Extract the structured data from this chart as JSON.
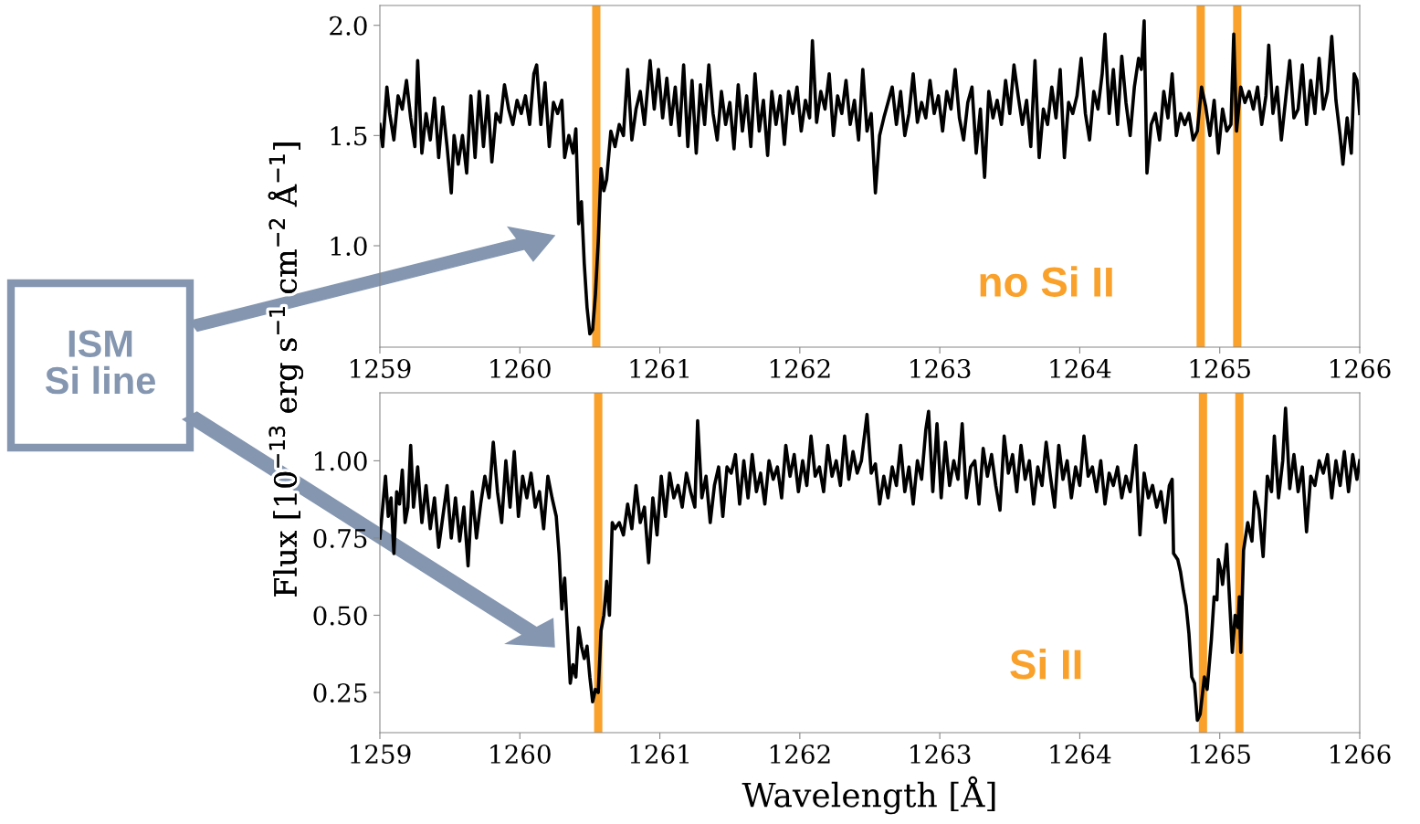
{
  "chart_data": [
    {
      "type": "line",
      "ylabel": "Flux [10$^{−13}$ erg s$^{−1}$ cm$^{−2}$ Å$^{−1}$]",
      "xlim": [
        1259,
        1266
      ],
      "xticks": [
        1259,
        1260,
        1261,
        1262,
        1263,
        1264,
        1265,
        1266
      ],
      "ylim": [
        0.54,
        2.09
      ],
      "yticks": [
        {
          "value": 1,
          "label": "1.0"
        },
        {
          "value": 1.5,
          "label": "1.5"
        },
        {
          "value": 2,
          "label": "2.0"
        }
      ],
      "ref_lines": [
        {
          "axis": "x",
          "value": 1260.546,
          "color": "#f9a12a"
        },
        {
          "axis": "x",
          "value": 1264.864,
          "color": "#f9a12a"
        },
        {
          "axis": "x",
          "value": 1265.125,
          "color": "#f9a12a"
        }
      ],
      "annotations": [
        "no Si II",
        "ISM\nSi line"
      ],
      "series": [
        {
          "color": "#000000",
          "x": [
            1259.0,
            1259.02,
            1259.05,
            1259.07,
            1259.1,
            1259.13,
            1259.16,
            1259.19,
            1259.22,
            1259.25,
            1259.27,
            1259.3,
            1259.33,
            1259.36,
            1259.39,
            1259.42,
            1259.45,
            1259.48,
            1259.51,
            1259.53,
            1259.56,
            1259.59,
            1259.62,
            1259.65,
            1259.68,
            1259.71,
            1259.74,
            1259.77,
            1259.8,
            1259.83,
            1259.86,
            1259.89,
            1259.92,
            1259.95,
            1259.98,
            1260.01,
            1260.04,
            1260.07,
            1260.1,
            1260.12,
            1260.15,
            1260.18,
            1260.21,
            1260.24,
            1260.27,
            1260.3,
            1260.32,
            1260.35,
            1260.38,
            1260.4,
            1260.42,
            1260.44,
            1260.46,
            1260.48,
            1260.5,
            1260.52,
            1260.54,
            1260.56,
            1260.58,
            1260.6,
            1260.62,
            1260.65,
            1260.68,
            1260.71,
            1260.74,
            1260.77,
            1260.8,
            1260.83,
            1260.86,
            1260.89,
            1260.93,
            1260.96,
            1260.99,
            1261.02,
            1261.05,
            1261.08,
            1261.11,
            1261.14,
            1261.17,
            1261.2,
            1261.23,
            1261.26,
            1261.29,
            1261.32,
            1261.35,
            1261.38,
            1261.41,
            1261.44,
            1261.47,
            1261.5,
            1261.53,
            1261.56,
            1261.59,
            1261.62,
            1261.65,
            1261.68,
            1261.71,
            1261.74,
            1261.77,
            1261.8,
            1261.83,
            1261.86,
            1261.89,
            1261.92,
            1261.95,
            1261.98,
            1262.01,
            1262.04,
            1262.07,
            1262.09,
            1262.12,
            1262.15,
            1262.18,
            1262.21,
            1262.24,
            1262.27,
            1262.3,
            1262.33,
            1262.36,
            1262.39,
            1262.42,
            1262.45,
            1262.48,
            1262.51,
            1262.54,
            1262.57,
            1262.6,
            1262.63,
            1262.66,
            1262.69,
            1262.72,
            1262.75,
            1262.78,
            1262.81,
            1262.84,
            1262.87,
            1262.9,
            1262.93,
            1262.96,
            1262.99,
            1263.02,
            1263.05,
            1263.08,
            1263.11,
            1263.14,
            1263.17,
            1263.2,
            1263.23,
            1263.26,
            1263.29,
            1263.32,
            1263.35,
            1263.38,
            1263.41,
            1263.44,
            1263.47,
            1263.5,
            1263.53,
            1263.56,
            1263.59,
            1263.62,
            1263.65,
            1263.68,
            1263.71,
            1263.74,
            1263.77,
            1263.8,
            1263.83,
            1263.86,
            1263.89,
            1263.92,
            1263.95,
            1263.98,
            1264.01,
            1264.04,
            1264.07,
            1264.1,
            1264.13,
            1264.16,
            1264.18,
            1264.21,
            1264.24,
            1264.27,
            1264.3,
            1264.33,
            1264.36,
            1264.39,
            1264.42,
            1264.44,
            1264.46,
            1264.48,
            1264.51,
            1264.54,
            1264.57,
            1264.6,
            1264.63,
            1264.66,
            1264.69,
            1264.72,
            1264.75,
            1264.78,
            1264.81,
            1264.84,
            1264.87,
            1264.9,
            1264.93,
            1264.96,
            1264.99,
            1265.02,
            1265.05,
            1265.08,
            1265.1,
            1265.12,
            1265.15,
            1265.18,
            1265.21,
            1265.24,
            1265.27,
            1265.3,
            1265.33,
            1265.35,
            1265.38,
            1265.41,
            1265.44,
            1265.47,
            1265.5,
            1265.53,
            1265.56,
            1265.59,
            1265.62,
            1265.65,
            1265.68,
            1265.71,
            1265.74,
            1265.77,
            1265.8,
            1265.83,
            1265.86,
            1265.88,
            1265.91,
            1265.94,
            1265.96,
            1265.98,
            1266.0
          ],
          "values": [
            1.55,
            1.45,
            1.72,
            1.6,
            1.48,
            1.68,
            1.62,
            1.75,
            1.58,
            1.45,
            1.84,
            1.42,
            1.6,
            1.48,
            1.67,
            1.4,
            1.63,
            1.45,
            1.24,
            1.5,
            1.37,
            1.5,
            1.33,
            1.68,
            1.4,
            1.7,
            1.45,
            1.68,
            1.38,
            1.6,
            1.56,
            1.73,
            1.62,
            1.55,
            1.66,
            1.6,
            1.68,
            1.55,
            1.78,
            1.82,
            1.55,
            1.74,
            1.45,
            1.65,
            1.6,
            1.66,
            1.4,
            1.5,
            1.42,
            1.53,
            1.1,
            1.2,
            0.92,
            0.72,
            0.6,
            0.62,
            0.78,
            1.02,
            1.35,
            1.25,
            1.3,
            1.52,
            1.45,
            1.55,
            1.5,
            1.8,
            1.48,
            1.62,
            1.7,
            1.55,
            1.84,
            1.62,
            1.8,
            1.58,
            1.76,
            1.55,
            1.72,
            1.5,
            1.82,
            1.45,
            1.75,
            1.42,
            1.73,
            1.55,
            1.82,
            1.6,
            1.48,
            1.7,
            1.55,
            1.65,
            1.44,
            1.73,
            1.52,
            1.68,
            1.45,
            1.78,
            1.52,
            1.66,
            1.41,
            1.7,
            1.55,
            1.68,
            1.46,
            1.7,
            1.6,
            1.72,
            1.52,
            1.66,
            1.58,
            1.93,
            1.56,
            1.7,
            1.62,
            1.78,
            1.5,
            1.68,
            1.6,
            1.75,
            1.55,
            1.66,
            1.48,
            1.8,
            1.52,
            1.6,
            1.24,
            1.5,
            1.58,
            1.65,
            1.72,
            1.55,
            1.7,
            1.5,
            1.6,
            1.78,
            1.56,
            1.65,
            1.58,
            1.75,
            1.6,
            1.68,
            1.52,
            1.7,
            1.62,
            1.8,
            1.58,
            1.48,
            1.65,
            1.72,
            1.42,
            1.62,
            1.31,
            1.7,
            1.58,
            1.66,
            1.55,
            1.75,
            1.6,
            1.82,
            1.68,
            1.55,
            1.66,
            1.45,
            1.84,
            1.4,
            1.62,
            1.55,
            1.72,
            1.58,
            1.8,
            1.4,
            1.65,
            1.6,
            1.68,
            1.85,
            1.6,
            1.48,
            1.7,
            1.62,
            1.78,
            1.96,
            1.6,
            1.8,
            1.55,
            1.86,
            1.65,
            1.5,
            1.72,
            1.85,
            1.8,
            2.02,
            1.33,
            1.55,
            1.6,
            1.48,
            1.7,
            1.58,
            1.78,
            1.5,
            1.6,
            1.55,
            1.6,
            1.48,
            1.52,
            1.72,
            1.63,
            1.5,
            1.66,
            1.42,
            1.62,
            1.52,
            1.55,
            1.96,
            1.52,
            1.72,
            1.65,
            1.7,
            1.62,
            1.72,
            1.55,
            1.68,
            1.91,
            1.6,
            1.72,
            1.48,
            1.66,
            1.84,
            1.58,
            1.62,
            1.82,
            1.55,
            1.75,
            1.6,
            1.85,
            1.62,
            1.7,
            1.95,
            1.66,
            1.5,
            1.37,
            1.58,
            1.42,
            1.78,
            1.75,
            1.6
          ]
        }
      ]
    },
    {
      "type": "line",
      "xlabel": "Wavelength [Å]",
      "xlim": [
        1259,
        1266
      ],
      "xticks": [
        1259,
        1260,
        1261,
        1262,
        1263,
        1264,
        1265,
        1266
      ],
      "ylim": [
        0.12,
        1.22
      ],
      "yticks": [
        {
          "value": 0.25,
          "label": "0.25"
        },
        {
          "value": 0.5,
          "label": "0.50"
        },
        {
          "value": 0.75,
          "label": "0.75"
        },
        {
          "value": 1,
          "label": "1.00"
        }
      ],
      "ref_lines": [
        {
          "axis": "x",
          "value": 1260.56,
          "color": "#f9a12a"
        },
        {
          "axis": "x",
          "value": 1264.88,
          "color": "#f9a12a"
        },
        {
          "axis": "x",
          "value": 1265.14,
          "color": "#f9a12a"
        }
      ],
      "annotations": [
        "Si II"
      ],
      "series": [
        {
          "color": "#000000",
          "x": [
            1259.0,
            1259.02,
            1259.04,
            1259.06,
            1259.08,
            1259.1,
            1259.12,
            1259.14,
            1259.16,
            1259.18,
            1259.2,
            1259.22,
            1259.24,
            1259.27,
            1259.3,
            1259.33,
            1259.36,
            1259.39,
            1259.42,
            1259.45,
            1259.48,
            1259.51,
            1259.54,
            1259.57,
            1259.6,
            1259.63,
            1259.66,
            1259.69,
            1259.72,
            1259.75,
            1259.78,
            1259.81,
            1259.84,
            1259.87,
            1259.9,
            1259.93,
            1259.96,
            1259.99,
            1260.02,
            1260.05,
            1260.08,
            1260.11,
            1260.14,
            1260.17,
            1260.2,
            1260.23,
            1260.26,
            1260.28,
            1260.3,
            1260.32,
            1260.34,
            1260.36,
            1260.38,
            1260.4,
            1260.42,
            1260.44,
            1260.46,
            1260.48,
            1260.5,
            1260.52,
            1260.54,
            1260.56,
            1260.58,
            1260.6,
            1260.62,
            1260.64,
            1260.66,
            1260.68,
            1260.71,
            1260.74,
            1260.77,
            1260.8,
            1260.83,
            1260.86,
            1260.89,
            1260.92,
            1260.95,
            1260.98,
            1261.01,
            1261.04,
            1261.07,
            1261.1,
            1261.13,
            1261.16,
            1261.19,
            1261.22,
            1261.25,
            1261.27,
            1261.3,
            1261.33,
            1261.36,
            1261.39,
            1261.42,
            1261.45,
            1261.48,
            1261.51,
            1261.54,
            1261.57,
            1261.6,
            1261.63,
            1261.66,
            1261.69,
            1261.72,
            1261.75,
            1261.78,
            1261.81,
            1261.84,
            1261.87,
            1261.9,
            1261.93,
            1261.96,
            1261.99,
            1262.02,
            1262.05,
            1262.08,
            1262.11,
            1262.14,
            1262.17,
            1262.2,
            1262.23,
            1262.26,
            1262.29,
            1262.32,
            1262.35,
            1262.38,
            1262.41,
            1262.44,
            1262.48,
            1262.51,
            1262.54,
            1262.57,
            1262.6,
            1262.63,
            1262.66,
            1262.69,
            1262.72,
            1262.75,
            1262.78,
            1262.81,
            1262.84,
            1262.87,
            1262.9,
            1262.92,
            1262.95,
            1262.98,
            1263.01,
            1263.04,
            1263.07,
            1263.1,
            1263.13,
            1263.16,
            1263.19,
            1263.22,
            1263.25,
            1263.28,
            1263.31,
            1263.34,
            1263.37,
            1263.4,
            1263.43,
            1263.46,
            1263.49,
            1263.52,
            1263.55,
            1263.58,
            1263.61,
            1263.64,
            1263.67,
            1263.7,
            1263.73,
            1263.76,
            1263.79,
            1263.82,
            1263.85,
            1263.88,
            1263.91,
            1263.94,
            1263.97,
            1264.0,
            1264.03,
            1264.06,
            1264.09,
            1264.12,
            1264.15,
            1264.18,
            1264.21,
            1264.24,
            1264.27,
            1264.3,
            1264.33,
            1264.36,
            1264.4,
            1264.43,
            1264.46,
            1264.49,
            1264.52,
            1264.55,
            1264.58,
            1264.61,
            1264.64,
            1264.66,
            1264.67,
            1264.7,
            1264.72,
            1264.74,
            1264.76,
            1264.78,
            1264.8,
            1264.82,
            1264.84,
            1264.86,
            1264.89,
            1264.91,
            1264.94,
            1264.96,
            1264.98,
            1264.99,
            1265.01,
            1265.02,
            1265.04,
            1265.05,
            1265.07,
            1265.09,
            1265.11,
            1265.13,
            1265.14,
            1265.15,
            1265.17,
            1265.2,
            1265.23,
            1265.25,
            1265.28,
            1265.31,
            1265.34,
            1265.37,
            1265.39,
            1265.42,
            1265.45,
            1265.47,
            1265.5,
            1265.53,
            1265.56,
            1265.59,
            1265.62,
            1265.65,
            1265.68,
            1265.71,
            1265.74,
            1265.77,
            1265.8,
            1265.83,
            1265.86,
            1265.89,
            1265.92,
            1265.95,
            1265.98,
            1266.0
          ],
          "values": [
            0.75,
            0.85,
            0.95,
            0.82,
            0.88,
            0.7,
            0.9,
            0.86,
            0.97,
            0.8,
            0.85,
            1.05,
            0.85,
            0.98,
            0.8,
            0.92,
            0.78,
            0.88,
            0.72,
            0.82,
            0.92,
            0.75,
            0.88,
            0.74,
            0.85,
            0.66,
            0.9,
            0.75,
            0.86,
            0.95,
            0.88,
            1.06,
            0.9,
            0.8,
            1.0,
            0.85,
            1.03,
            0.82,
            0.95,
            0.88,
            0.96,
            0.85,
            0.9,
            0.78,
            0.95,
            0.88,
            0.82,
            0.7,
            0.52,
            0.62,
            0.45,
            0.28,
            0.34,
            0.3,
            0.46,
            0.4,
            0.36,
            0.4,
            0.3,
            0.22,
            0.26,
            0.25,
            0.45,
            0.5,
            0.61,
            0.5,
            0.8,
            0.78,
            0.8,
            0.76,
            0.86,
            0.78,
            0.92,
            0.8,
            0.85,
            0.67,
            0.88,
            0.76,
            0.95,
            0.82,
            0.96,
            0.88,
            0.92,
            0.85,
            0.96,
            0.9,
            0.85,
            1.13,
            0.88,
            0.95,
            0.8,
            0.92,
            0.98,
            0.82,
            0.98,
            0.96,
            1.02,
            0.86,
            1.0,
            0.88,
            1.02,
            0.9,
            0.96,
            0.86,
            1.0,
            0.94,
            0.98,
            0.88,
            1.05,
            0.95,
            1.02,
            0.9,
            1.0,
            0.92,
            1.08,
            0.95,
            0.98,
            0.9,
            1.05,
            0.95,
            1.0,
            0.92,
            1.08,
            0.94,
            1.03,
            0.96,
            1.0,
            1.15,
            0.96,
            0.99,
            0.86,
            0.95,
            0.88,
            0.98,
            0.92,
            1.05,
            0.9,
            0.98,
            0.86,
            1.0,
            0.94,
            1.1,
            1.16,
            0.9,
            1.12,
            0.88,
            1.06,
            0.92,
            1.0,
            0.94,
            1.12,
            0.88,
            0.98,
            1.0,
            0.86,
            1.04,
            0.95,
            1.02,
            0.92,
            0.84,
            1.08,
            0.96,
            1.02,
            0.9,
            1.05,
            0.94,
            1.0,
            0.86,
            0.98,
            0.92,
            1.06,
            0.95,
            0.85,
            1.05,
            0.94,
            1.0,
            0.88,
            0.98,
            0.92,
            1.08,
            0.95,
            0.98,
            0.9,
            1.0,
            0.86,
            0.96,
            0.92,
            0.98,
            0.88,
            0.95,
            0.9,
            1.05,
            0.76,
            0.96,
            0.88,
            0.92,
            0.85,
            0.9,
            0.8,
            0.92,
            0.94,
            0.7,
            0.68,
            0.64,
            0.58,
            0.53,
            0.44,
            0.3,
            0.28,
            0.16,
            0.18,
            0.3,
            0.26,
            0.42,
            0.56,
            0.55,
            0.68,
            0.64,
            0.6,
            0.68,
            0.73,
            0.55,
            0.38,
            0.5,
            0.46,
            0.56,
            0.38,
            0.71,
            0.8,
            0.74,
            0.9,
            0.84,
            0.69,
            0.95,
            0.9,
            1.08,
            0.88,
            1.0,
            1.17,
            0.91,
            1.02,
            0.9,
            0.98,
            0.77,
            0.95,
            0.92,
            1.0,
            0.96,
            1.02,
            0.88,
            1.0,
            0.92,
            1.03,
            0.9,
            1.02,
            0.94,
            1.0
          ]
        }
      ]
    }
  ]
}
